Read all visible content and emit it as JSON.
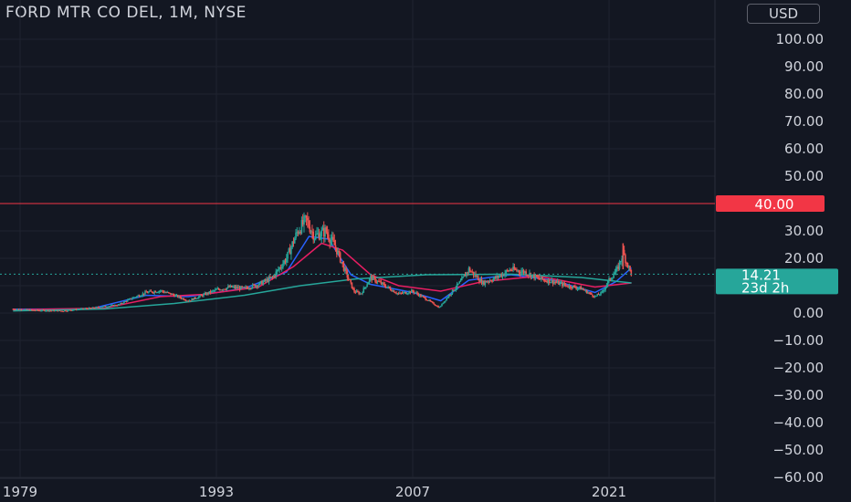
{
  "header": {
    "symbol_title": "FORD MTR CO DEL, 1M, NYSE",
    "currency_button": "USD"
  },
  "colors": {
    "background": "#131722",
    "grid": "#1f2330",
    "text": "#d1d4dc",
    "up_candle": "#26a69a",
    "down_candle": "#ef5350",
    "ma_short": "#2962ff",
    "ma_mid": "#e91e63",
    "ma_long": "#26a69a",
    "horizontal_line": "#f23645",
    "price_label_bg": "#26a69a"
  },
  "chart_data": {
    "type": "candlestick",
    "title": "FORD MTR CO DEL, 1M, NYSE",
    "currency": "USD",
    "x_axis": {
      "ticks": [
        1979,
        1993,
        2007,
        2021
      ],
      "tick_labels": [
        "1979",
        "1993",
        "2007",
        "2021"
      ],
      "range": [
        1978.5,
        2031
      ]
    },
    "y_axis": {
      "ticks": [
        100,
        90,
        80,
        70,
        60,
        50,
        40,
        30,
        20,
        10,
        0,
        -10,
        -20,
        -30,
        -40,
        -50,
        -60
      ],
      "tick_labels": [
        "100.00",
        "90.00",
        "80.00",
        "70.00",
        "60.00",
        "50.00",
        "40.00",
        "30.00",
        "20.00",
        "10.00",
        "0.00",
        "−10.00",
        "−20.00",
        "−30.00",
        "−40.00",
        "−50.00",
        "−60.00"
      ],
      "range": [
        -60,
        110
      ]
    },
    "grid": true,
    "horizontal_line": {
      "value": 40.0,
      "label": "40.00"
    },
    "last_price": {
      "value": 14.21,
      "label": "14.21",
      "countdown": "23d 2h"
    },
    "price_series_approx": [
      [
        1978.5,
        1.5
      ],
      [
        1980,
        1.0
      ],
      [
        1982,
        0.8
      ],
      [
        1984,
        1.8
      ],
      [
        1986,
        3.0
      ],
      [
        1987,
        5.5
      ],
      [
        1988,
        7.5
      ],
      [
        1989,
        8.2
      ],
      [
        1990,
        6.5
      ],
      [
        1991,
        4.5
      ],
      [
        1992,
        6.5
      ],
      [
        1993,
        8.5
      ],
      [
        1994,
        9.5
      ],
      [
        1995,
        9.0
      ],
      [
        1996,
        10.5
      ],
      [
        1997,
        13.0
      ],
      [
        1998,
        20.0
      ],
      [
        1998.8,
        30.0
      ],
      [
        1999.4,
        34.0
      ],
      [
        2000,
        28.0
      ],
      [
        2000.8,
        30.0
      ],
      [
        2001.5,
        24.0
      ],
      [
        2002.2,
        15.0
      ],
      [
        2002.8,
        8.0
      ],
      [
        2003.3,
        7.0
      ],
      [
        2004,
        13.0
      ],
      [
        2005,
        10.0
      ],
      [
        2006,
        7.0
      ],
      [
        2007,
        8.0
      ],
      [
        2008,
        5.0
      ],
      [
        2008.9,
        2.0
      ],
      [
        2009.5,
        6.0
      ],
      [
        2010.5,
        12.0
      ],
      [
        2011,
        16.0
      ],
      [
        2012,
        11.0
      ],
      [
        2013,
        13.0
      ],
      [
        2014,
        16.0
      ],
      [
        2015,
        15.0
      ],
      [
        2016,
        12.5
      ],
      [
        2017,
        11.5
      ],
      [
        2018,
        10.0
      ],
      [
        2019,
        9.0
      ],
      [
        2020,
        6.0
      ],
      [
        2020.5,
        7.5
      ],
      [
        2021,
        12.0
      ],
      [
        2021.6,
        16.0
      ],
      [
        2022.0,
        22.0
      ],
      [
        2022.3,
        18.0
      ],
      [
        2022.6,
        14.21
      ]
    ],
    "moving_averages": [
      {
        "color_key": "ma_short",
        "values": [
          [
            1978.5,
            1.4
          ],
          [
            1984,
            1.5
          ],
          [
            1988,
            6.5
          ],
          [
            1991,
            6.0
          ],
          [
            1995,
            9.0
          ],
          [
            1998,
            15.0
          ],
          [
            1999.6,
            28.0
          ],
          [
            2001,
            27.0
          ],
          [
            2002.6,
            14.0
          ],
          [
            2004,
            10.5
          ],
          [
            2007,
            7.5
          ],
          [
            2009,
            4.5
          ],
          [
            2011,
            12.0
          ],
          [
            2014,
            14.0
          ],
          [
            2017,
            12.0
          ],
          [
            2020,
            7.5
          ],
          [
            2021.5,
            11.5
          ],
          [
            2022.6,
            16.5
          ]
        ]
      },
      {
        "color_key": "ma_mid",
        "values": [
          [
            1978.5,
            1.2
          ],
          [
            1985,
            1.8
          ],
          [
            1989,
            6.0
          ],
          [
            1992,
            6.8
          ],
          [
            1996,
            9.5
          ],
          [
            1998.5,
            17.0
          ],
          [
            2000.5,
            25.5
          ],
          [
            2002,
            23.0
          ],
          [
            2004,
            14.0
          ],
          [
            2006,
            10.0
          ],
          [
            2009,
            8.0
          ],
          [
            2012,
            11.5
          ],
          [
            2016,
            13.5
          ],
          [
            2020,
            9.5
          ],
          [
            2022.6,
            11.0
          ]
        ]
      },
      {
        "color_key": "ma_long",
        "values": [
          [
            1978.5,
            0.8
          ],
          [
            1985,
            1.5
          ],
          [
            1990,
            3.5
          ],
          [
            1995,
            6.5
          ],
          [
            1999,
            10.0
          ],
          [
            2003,
            12.5
          ],
          [
            2008,
            14.0
          ],
          [
            2014,
            14.2
          ],
          [
            2019,
            13.0
          ],
          [
            2022.6,
            11.0
          ]
        ]
      }
    ]
  }
}
